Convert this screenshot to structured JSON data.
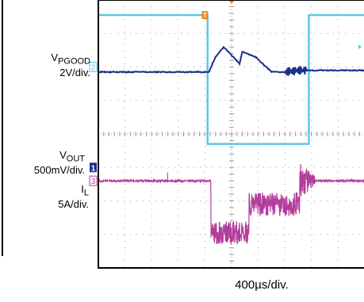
{
  "chart_data": {
    "type": "line",
    "title": "",
    "x_scale_label": "400µs/div.",
    "grid": true,
    "grid_divisions": {
      "horizontal": 10,
      "vertical": 8
    },
    "trigger_marker": "T",
    "colors": {
      "ch1": "#1c2f8c",
      "ch2": "#5bc8ea",
      "ch3": "#b33d9b",
      "trigger": "#f08c1c",
      "grid": "#9a9a9a",
      "frame": "#000000"
    },
    "channels": [
      {
        "id": "2",
        "name_base": "V",
        "name_sub": "PGOOD",
        "scale": "2V/div.",
        "color": "#5bc8ea"
      },
      {
        "id": "1",
        "name_base": "V",
        "name_sub": "OUT",
        "scale": "500mV/div.",
        "color": "#1c2f8c"
      },
      {
        "id": "3",
        "name_base": "I",
        "name_sub": "L",
        "scale": "5A/div.",
        "color": "#b33d9b"
      }
    ],
    "series": [
      {
        "name": "VPGOOD",
        "channel": "2",
        "unit_x": "div",
        "unit_y": "div",
        "x": [
          0,
          4.1,
          4.1,
          7.9,
          7.9,
          10
        ],
        "y": [
          7.55,
          7.55,
          3.7,
          3.7,
          7.55,
          7.55
        ]
      },
      {
        "name": "VOUT",
        "channel": "1",
        "unit_x": "div",
        "unit_y": "div",
        "x": [
          0,
          4.15,
          4.4,
          4.7,
          5.3,
          5.4,
          5.9,
          6.3,
          6.5,
          7.0,
          7.5,
          10
        ],
        "y": [
          5.85,
          5.85,
          6.3,
          6.6,
          6.1,
          6.45,
          6.3,
          6.0,
          5.85,
          5.85,
          5.9,
          5.9
        ]
      },
      {
        "name": "IL",
        "channel": "3",
        "unit_x": "div",
        "unit_y": "div",
        "x": [
          0,
          4.22,
          4.22,
          5.65,
          5.65,
          7.55,
          7.55,
          8.15,
          8.15,
          10
        ],
        "y": [
          2.6,
          2.6,
          1.05,
          1.05,
          1.9,
          1.9,
          2.6,
          2.6,
          2.6,
          2.6
        ]
      }
    ]
  }
}
